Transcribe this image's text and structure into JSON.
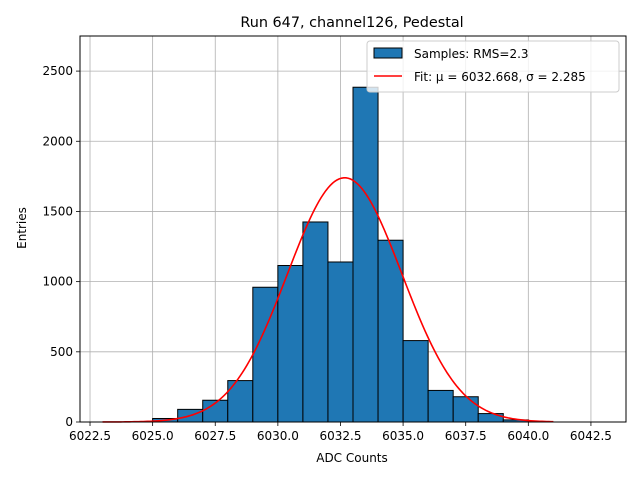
{
  "chart_data": {
    "type": "bar",
    "title": "Run 647, channel126, Pedestal",
    "xlabel": "ADC Counts",
    "ylabel": "Entries",
    "xlim": [
      6022.1,
      6043.9
    ],
    "ylim": [
      0,
      2750
    ],
    "xticks": [
      6022.5,
      6025.0,
      6027.5,
      6030.0,
      6032.5,
      6035.0,
      6037.5,
      6040.0,
      6042.5
    ],
    "xtick_labels": [
      "6022.5",
      "6025.0",
      "6027.5",
      "6030.0",
      "6032.5",
      "6035.0",
      "6037.5",
      "6040.0",
      "6042.5"
    ],
    "yticks": [
      0,
      500,
      1000,
      1500,
      2000,
      2500
    ],
    "ytick_labels": [
      "0",
      "500",
      "1000",
      "1500",
      "2000",
      "2500"
    ],
    "grid": true,
    "legend_position": "top-right",
    "histogram": {
      "name": "Samples: RMS=2.3",
      "color": "#1f77b4",
      "edge_color": "#000000",
      "bin_edges": [
        6025,
        6026,
        6027,
        6028,
        6029,
        6030,
        6031,
        6032,
        6033,
        6034,
        6035,
        6036,
        6037,
        6038,
        6039,
        6040
      ],
      "counts": [
        25,
        90,
        155,
        295,
        960,
        1115,
        1425,
        1140,
        2385,
        1295,
        580,
        225,
        180,
        60,
        15
      ]
    },
    "fit": {
      "name": "Fit: μ = 6032.668, σ = 2.285",
      "color": "#ff0000",
      "mu": 6032.668,
      "sigma": 2.285,
      "amplitude": 1740,
      "x_range": [
        6023,
        6041
      ]
    }
  }
}
